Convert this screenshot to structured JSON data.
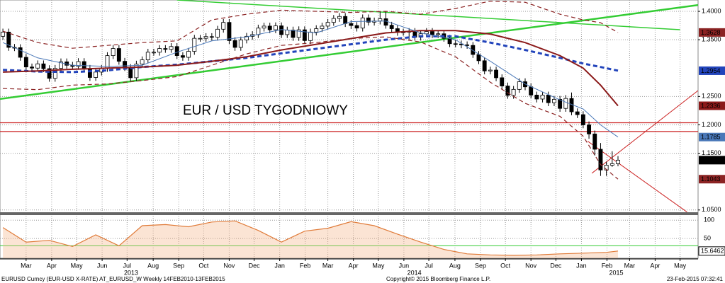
{
  "chart_data": {
    "type": "candlestick",
    "title": "EUR / USD TYGODNIOWY",
    "title_color": "#cc2222",
    "xlim": [
      -0.5,
      119.8
    ],
    "ylim": [
      1.046,
      1.42
    ],
    "yticks": [
      {
        "value": 1.4,
        "label": "1.4000"
      },
      {
        "value": 1.35,
        "label": "1.3500"
      },
      {
        "value": 1.25,
        "label": "1.2500"
      },
      {
        "value": 1.2,
        "label": "1.2000"
      },
      {
        "value": 1.15,
        "label": "1.1500"
      },
      {
        "value": 1.05,
        "label": "1.0500"
      }
    ],
    "xticks": [
      {
        "value": 4,
        "label": "Mar"
      },
      {
        "value": 8.4,
        "label": "Apr"
      },
      {
        "value": 12.7,
        "label": "May"
      },
      {
        "value": 17.1,
        "label": "Jun"
      },
      {
        "value": 21.4,
        "label": "Jul"
      },
      {
        "value": 25.9,
        "label": "Aug"
      },
      {
        "value": 30.3,
        "label": "Sep"
      },
      {
        "value": 34.6,
        "label": "Oct"
      },
      {
        "value": 39,
        "label": "Nov"
      },
      {
        "value": 43.3,
        "label": "Dec"
      },
      {
        "value": 47.7,
        "label": "Jan"
      },
      {
        "value": 52.1,
        "label": "Feb"
      },
      {
        "value": 56,
        "label": "Mar"
      },
      {
        "value": 60.4,
        "label": "Apr"
      },
      {
        "value": 64.7,
        "label": "May"
      },
      {
        "value": 69.1,
        "label": "Jun"
      },
      {
        "value": 73.4,
        "label": "Jul"
      },
      {
        "value": 77.9,
        "label": "Aug"
      },
      {
        "value": 82.3,
        "label": "Sep"
      },
      {
        "value": 86.6,
        "label": "Oct"
      },
      {
        "value": 91,
        "label": "Nov"
      },
      {
        "value": 95.3,
        "label": "Dec"
      },
      {
        "value": 99.7,
        "label": "Jan"
      },
      {
        "value": 104.1,
        "label": "Feb"
      },
      {
        "value": 108,
        "label": "Mar"
      },
      {
        "value": 112.4,
        "label": "Apr"
      },
      {
        "value": 116.7,
        "label": "May"
      }
    ],
    "year_labels": [
      {
        "value": 22.1,
        "label": "2013"
      },
      {
        "value": 70.9,
        "label": "2014"
      },
      {
        "value": 105.7,
        "label": "2015"
      }
    ],
    "grid": true,
    "candles": {
      "up_color": "#ffffff",
      "down_color": "#000000",
      "tag_color": "#000000",
      "x": [
        0,
        1,
        2,
        3,
        4,
        5,
        6,
        7,
        8,
        9,
        10,
        11,
        12,
        13,
        14,
        15,
        16,
        17,
        18,
        19,
        20,
        21,
        22,
        23,
        24,
        25,
        26,
        27,
        28,
        29,
        30,
        31,
        32,
        33,
        34,
        35,
        36,
        37,
        38,
        39,
        40,
        41,
        42,
        43,
        44,
        45,
        46,
        47,
        48,
        49,
        50,
        51,
        52,
        53,
        54,
        55,
        56,
        57,
        58,
        59,
        60,
        61,
        62,
        63,
        64,
        65,
        66,
        67,
        68,
        69,
        70,
        71,
        72,
        73,
        74,
        75,
        76,
        77,
        78,
        79,
        80,
        81,
        82,
        83,
        84,
        85,
        86,
        87,
        88,
        89,
        90,
        91,
        92,
        93,
        94,
        95,
        96,
        97,
        98,
        99,
        100,
        101,
        102,
        103,
        104,
        105,
        106
      ],
      "open": [
        1.356,
        1.3635,
        1.3365,
        1.336,
        1.319,
        1.302,
        1.3,
        1.3075,
        1.299,
        1.282,
        1.2995,
        1.311,
        1.305,
        1.303,
        1.3115,
        1.2995,
        1.2835,
        1.293,
        1.2995,
        1.322,
        1.3345,
        1.312,
        1.301,
        1.283,
        1.307,
        1.3145,
        1.328,
        1.328,
        1.3345,
        1.333,
        1.338,
        1.322,
        1.319,
        1.3295,
        1.3525,
        1.3525,
        1.3555,
        1.3545,
        1.3685,
        1.3805,
        1.3485,
        1.3365,
        1.3495,
        1.356,
        1.359,
        1.3705,
        1.374,
        1.3675,
        1.3745,
        1.359,
        1.367,
        1.354,
        1.3675,
        1.3485,
        1.3635,
        1.3695,
        1.374,
        1.3805,
        1.3875,
        1.391,
        1.3785,
        1.375,
        1.3705,
        1.3885,
        1.381,
        1.383,
        1.387,
        1.3755,
        1.3695,
        1.363,
        1.3635,
        1.3645,
        1.3545,
        1.3605,
        1.3645,
        1.359,
        1.3605,
        1.3525,
        1.343,
        1.3425,
        1.341,
        1.34,
        1.324,
        1.313,
        1.295,
        1.2965,
        1.283,
        1.2685,
        1.252,
        1.2625,
        1.276,
        1.267,
        1.2525,
        1.2455,
        1.2525,
        1.239,
        1.245,
        1.229,
        1.2465,
        1.223,
        1.218,
        1.2,
        1.184,
        1.157,
        1.1205,
        1.129,
        1.1315
      ],
      "high": [
        1.3695,
        1.3695,
        1.3425,
        1.342,
        1.325,
        1.308,
        1.3135,
        1.3135,
        1.305,
        1.3055,
        1.317,
        1.317,
        1.311,
        1.3175,
        1.3175,
        1.3055,
        1.299,
        1.3055,
        1.328,
        1.3405,
        1.3405,
        1.318,
        1.307,
        1.313,
        1.3205,
        1.334,
        1.334,
        1.3405,
        1.3405,
        1.344,
        1.344,
        1.328,
        1.3355,
        1.3585,
        1.3585,
        1.3615,
        1.3615,
        1.3745,
        1.3865,
        1.3865,
        1.3545,
        1.3555,
        1.362,
        1.365,
        1.3765,
        1.38,
        1.38,
        1.3805,
        1.3805,
        1.373,
        1.373,
        1.3735,
        1.3735,
        1.3695,
        1.3755,
        1.38,
        1.3865,
        1.3935,
        1.397,
        1.397,
        1.3845,
        1.381,
        1.3945,
        1.3945,
        1.389,
        1.3995,
        1.3995,
        1.3815,
        1.3755,
        1.3695,
        1.3705,
        1.3705,
        1.3665,
        1.3705,
        1.3705,
        1.3665,
        1.3665,
        1.3585,
        1.349,
        1.3485,
        1.347,
        1.346,
        1.33,
        1.319,
        1.3025,
        1.3025,
        1.289,
        1.2745,
        1.2685,
        1.282,
        1.282,
        1.273,
        1.2585,
        1.2585,
        1.2585,
        1.251,
        1.251,
        1.2525,
        1.257,
        1.229,
        1.224,
        1.206,
        1.19,
        1.168,
        1.135,
        1.1535,
        1.145
      ],
      "low": [
        1.35,
        1.3305,
        1.33,
        1.313,
        1.296,
        1.294,
        1.294,
        1.293,
        1.276,
        1.276,
        1.2935,
        1.299,
        1.297,
        1.297,
        1.2935,
        1.2775,
        1.2775,
        1.287,
        1.2935,
        1.316,
        1.306,
        1.295,
        1.277,
        1.277,
        1.301,
        1.3085,
        1.322,
        1.322,
        1.327,
        1.327,
        1.316,
        1.313,
        1.313,
        1.3235,
        1.3465,
        1.3465,
        1.3485,
        1.3485,
        1.3625,
        1.3425,
        1.3305,
        1.3305,
        1.3435,
        1.35,
        1.353,
        1.3645,
        1.3615,
        1.3615,
        1.353,
        1.353,
        1.348,
        1.348,
        1.3425,
        1.3425,
        1.3575,
        1.3635,
        1.368,
        1.3745,
        1.3815,
        1.3725,
        1.369,
        1.3645,
        1.3645,
        1.375,
        1.375,
        1.377,
        1.3695,
        1.3635,
        1.357,
        1.357,
        1.35,
        1.3485,
        1.3485,
        1.3545,
        1.353,
        1.353,
        1.3465,
        1.337,
        1.3365,
        1.335,
        1.334,
        1.318,
        1.307,
        1.289,
        1.289,
        1.277,
        1.2625,
        1.246,
        1.246,
        1.2565,
        1.261,
        1.2465,
        1.2395,
        1.2395,
        1.233,
        1.233,
        1.223,
        1.223,
        1.217,
        1.212,
        1.194,
        1.1755,
        1.146,
        1.11,
        1.11,
        1.126,
        1.127
      ],
      "close": [
        1.3635,
        1.3365,
        1.336,
        1.319,
        1.302,
        1.3,
        1.3075,
        1.299,
        1.282,
        1.2995,
        1.311,
        1.305,
        1.303,
        1.3115,
        1.2995,
        1.2835,
        1.293,
        1.2995,
        1.322,
        1.3345,
        1.312,
        1.301,
        1.283,
        1.307,
        1.3145,
        1.328,
        1.328,
        1.3345,
        1.333,
        1.338,
        1.322,
        1.319,
        1.3295,
        1.3525,
        1.3525,
        1.3555,
        1.3545,
        1.3685,
        1.3805,
        1.3485,
        1.3365,
        1.3495,
        1.356,
        1.359,
        1.3705,
        1.374,
        1.3675,
        1.3745,
        1.359,
        1.367,
        1.354,
        1.3675,
        1.3485,
        1.3635,
        1.3695,
        1.374,
        1.3805,
        1.3875,
        1.391,
        1.3785,
        1.375,
        1.3705,
        1.3885,
        1.381,
        1.383,
        1.387,
        1.3755,
        1.3695,
        1.363,
        1.3635,
        1.3645,
        1.3545,
        1.3605,
        1.3645,
        1.359,
        1.3605,
        1.3525,
        1.343,
        1.3425,
        1.341,
        1.34,
        1.324,
        1.313,
        1.295,
        1.2965,
        1.283,
        1.2685,
        1.252,
        1.2625,
        1.276,
        1.267,
        1.2525,
        1.2455,
        1.2525,
        1.239,
        1.245,
        1.229,
        1.2465,
        1.223,
        1.218,
        1.2,
        1.184,
        1.157,
        1.1205,
        1.129,
        1.1315,
        1.1378
      ]
    },
    "series": [
      {
        "color": "#8b2323",
        "dash": true,
        "width": 1.2,
        "x": [
          0,
          6,
          12,
          18,
          24,
          30,
          36,
          42,
          48,
          54,
          60,
          66,
          72,
          78,
          84,
          90,
          96,
          100,
          103,
          106
        ],
        "values": [
          1.365,
          1.345,
          1.335,
          1.34,
          1.345,
          1.348,
          1.385,
          1.395,
          1.402,
          1.4,
          1.398,
          1.4,
          1.395,
          1.405,
          1.418,
          1.416,
          1.395,
          1.385,
          1.38,
          1.3628
        ]
      },
      {
        "color": "#2244bb",
        "dash": true,
        "width": 3,
        "x": [
          0,
          6,
          12,
          18,
          24,
          30,
          36,
          42,
          48,
          54,
          60,
          66,
          72,
          78,
          84,
          90,
          96,
          100,
          103,
          106
        ],
        "values": [
          1.297,
          1.294,
          1.293,
          1.296,
          1.302,
          1.306,
          1.312,
          1.318,
          1.326,
          1.334,
          1.342,
          1.35,
          1.356,
          1.356,
          1.345,
          1.332,
          1.318,
          1.308,
          1.302,
          1.2954
        ]
      },
      {
        "color": "#8b1a1a",
        "dash": false,
        "width": 2,
        "x": [
          0,
          6,
          12,
          18,
          24,
          30,
          36,
          42,
          48,
          54,
          60,
          66,
          72,
          78,
          84,
          90,
          96,
          100,
          103,
          106
        ],
        "values": [
          1.293,
          1.295,
          1.298,
          1.3,
          1.302,
          1.305,
          1.312,
          1.32,
          1.332,
          1.342,
          1.352,
          1.362,
          1.366,
          1.366,
          1.36,
          1.345,
          1.322,
          1.3,
          1.27,
          1.2336
        ]
      },
      {
        "color": "#4a78b8",
        "dash": false,
        "width": 1,
        "x": [
          0,
          6,
          12,
          18,
          24,
          30,
          36,
          42,
          48,
          54,
          60,
          66,
          72,
          78,
          84,
          90,
          96,
          100,
          103,
          106
        ],
        "values": [
          1.345,
          1.318,
          1.305,
          1.303,
          1.305,
          1.328,
          1.348,
          1.355,
          1.368,
          1.362,
          1.382,
          1.383,
          1.362,
          1.35,
          1.312,
          1.272,
          1.244,
          1.228,
          1.2,
          1.1785
        ]
      },
      {
        "color": "#8b2323",
        "dash": true,
        "width": 1.2,
        "x": [
          0,
          6,
          12,
          18,
          24,
          30,
          36,
          42,
          48,
          54,
          60,
          66,
          72,
          78,
          84,
          90,
          96,
          100,
          103,
          106
        ],
        "values": [
          1.264,
          1.262,
          1.27,
          1.272,
          1.278,
          1.285,
          1.305,
          1.325,
          1.34,
          1.345,
          1.352,
          1.355,
          1.346,
          1.32,
          1.275,
          1.238,
          1.215,
          1.18,
          1.13,
          1.1043
        ]
      }
    ],
    "trendlines": [
      {
        "color": "#33cc33",
        "width": 1.5,
        "x": [
          30,
          116.7
        ],
        "values": [
          1.42,
          1.3676
        ]
      },
      {
        "color": "#33cc33",
        "width": 2.5,
        "x": [
          -0.5,
          119.8
        ],
        "values": [
          1.2456,
          1.4112
        ]
      },
      {
        "color": "#cc2222",
        "width": 1,
        "x": [
          100.8,
          117.9
        ],
        "values": [
          1.171,
          1.0464
        ]
      },
      {
        "color": "#cc2222",
        "width": 1,
        "x": [
          101.5,
          119.8
        ],
        "values": [
          1.1148,
          1.2604
        ]
      }
    ],
    "levels": [
      {
        "value": 1.2037,
        "color": "#cc2222"
      },
      {
        "value": 1.1883,
        "color": "#cc2222"
      }
    ],
    "lower": {
      "type": "area",
      "ylim": [
        -4,
        112
      ],
      "yticks": [
        100,
        50
      ],
      "levels": [
        {
          "value": 30,
          "color": "#33cc33"
        }
      ],
      "color": "#e07b39",
      "fill": "#f4b183",
      "x": [
        0,
        4,
        8,
        12,
        16,
        20,
        24,
        28,
        32,
        36,
        40,
        44,
        48,
        52,
        56,
        60,
        64,
        68,
        72,
        76,
        80,
        84,
        88,
        92,
        96,
        100,
        104,
        106
      ],
      "values": [
        80,
        40,
        45,
        28,
        60,
        30,
        85,
        88,
        82,
        95,
        98,
        72,
        40,
        70,
        78,
        96,
        85,
        62,
        40,
        20,
        8,
        5,
        4,
        5,
        8,
        10,
        12,
        15.6462
      ]
    },
    "footer": {
      "left": "EURUSD Curncy (EUR-USD X-RATE) AT_EURUSD_W  Weekly 14FEB2010-13FEB2015",
      "center": "Copyright© 2015 Bloomberg Finance L.P.",
      "right": "23-Feb-2015 07:32:41"
    }
  }
}
